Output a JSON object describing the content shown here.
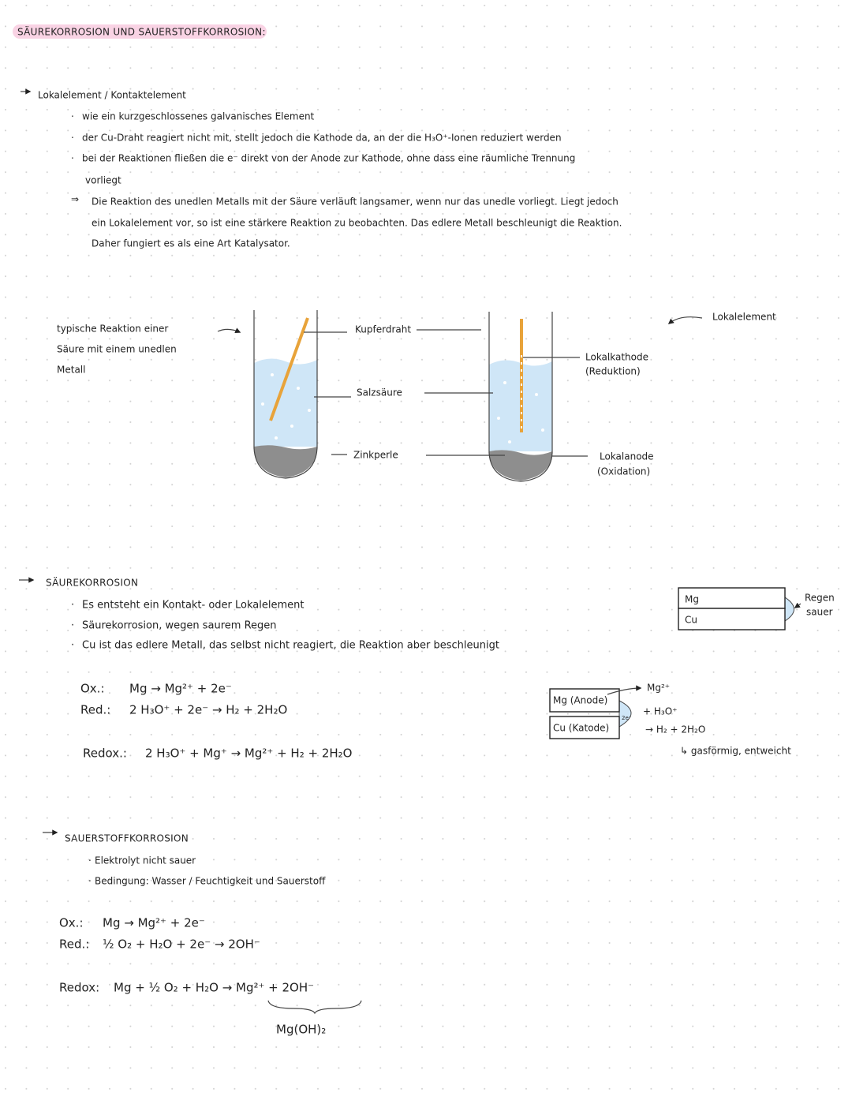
{
  "title": "SÄUREKORROSION UND SAUERSTOFFKORROSION:",
  "lokalelement": {
    "heading": "Lokalelement / Kontaktelement",
    "bullets": [
      "wie ein kurzgeschlossenes galvanisches Element",
      "der Cu-Draht reagiert nicht mit, stellt jedoch die Kathode da, an der die H₃O⁺-Ionen reduziert werden",
      "bei der Reaktionen fließen die e⁻ direkt von der Anode zur Kathode, ohne dass eine räumliche Trennung",
      "vorliegt"
    ],
    "conclusion": [
      "Die Reaktion des unedlen Metalls mit der Säure verläuft langsamer, wenn nur das unedle vorliegt. Liegt jedoch",
      "ein Lokalelement vor, so ist eine stärkere Reaktion zu beobachten. Das edlere Metall beschleunigt die Reaktion.",
      "Daher fungiert es als eine Art Katalysator."
    ]
  },
  "diagram": {
    "caption": [
      "typische Reaktion einer",
      "Säure mit einem unedlen",
      "Metall"
    ],
    "labels": {
      "wire": "Kupferdraht",
      "acid": "Salzsäure",
      "zinc": "Zinkperle",
      "element": "Lokalelement",
      "cathode": "Lokalkathode",
      "cathode_note": "(Reduktion)",
      "anode": "Lokalanode",
      "anode_note": "(Oxidation)"
    }
  },
  "saeurekorrosion": {
    "heading": "SÄUREKORROSION",
    "bullets": [
      "Es entsteht ein Kontakt- oder Lokalelement",
      "Säurekorrosion, wegen saurem Regen",
      "Cu ist das edlere Metall, das selbst nicht reagiert, die Reaktion aber beschleunigt"
    ],
    "box": {
      "top": "Mg",
      "bottom": "Cu",
      "rain": [
        "Regen",
        "sauer"
      ]
    },
    "equations": [
      {
        "label": "Ox.:",
        "text": "Mg → Mg²⁺ + 2e⁻"
      },
      {
        "label": "Red.:",
        "text": "2 H₃O⁺ + 2e⁻ → H₂ + 2H₂O"
      },
      {
        "label": "Redox.:",
        "text": "2 H₃O⁺ + Mg⁺ → Mg²⁺ + H₂ + 2H₂O"
      }
    ],
    "cell": {
      "anode": "Mg (Anode)",
      "cathode": "Cu (Katode)",
      "electrons": "2e⁻",
      "ion": "Mg²⁺",
      "acid": "+ H₃O⁺",
      "products": "→ H₂ + 2H₂O",
      "note": "↳ gasförmig, entweicht"
    }
  },
  "sauerstoffkorrosion": {
    "heading": "SAUERSTOFFKORROSION",
    "bullets": [
      "Elektrolyt nicht sauer",
      "Bedingung: Wasser / Feuchtigkeit und Sauerstoff"
    ],
    "equations": [
      {
        "label": "Ox.:",
        "text": "Mg → Mg²⁺ + 2e⁻"
      },
      {
        "label": "Red.:",
        "text": "½ O₂ + H₂O + 2e⁻ → 2OH⁻"
      },
      {
        "label": "Redox:",
        "text": "Mg + ½ O₂ + H₂O → Mg²⁺ + 2OH⁻"
      }
    ],
    "product": "Mg(OH)₂"
  }
}
